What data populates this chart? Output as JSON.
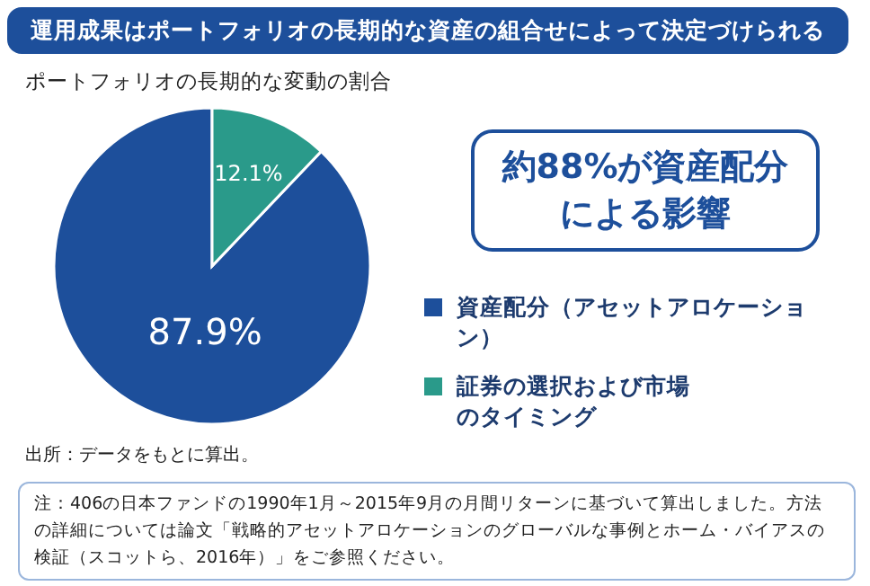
{
  "chart_data": {
    "type": "pie",
    "title": "運用成果はポートフォリオの長期的な資産の組合せによって決定づけられる",
    "subtitle": "ポートフォリオの長期的な変動の割合",
    "categories": [
      "資産配分（アセットアロケーション）",
      "証券の選択および市場のタイミング"
    ],
    "values": [
      87.9,
      12.1
    ],
    "colors": [
      "#1d4f9b",
      "#2a9a8a"
    ],
    "value_labels": [
      "87.9%",
      "12.1%"
    ],
    "legend": "right",
    "annotations": [
      "約88%が資産配分による影響",
      "出所：データをもとに算出。",
      "注：406の日本ファンドの1990年1月～2015年9月の月間リターンに基づいて算出しました。方法の詳細については論文「戦略的アセットアロケーションのグローバルな事例とホーム・バイアスの検証（スコットら、2016年）」をご参照ください。"
    ]
  }
}
